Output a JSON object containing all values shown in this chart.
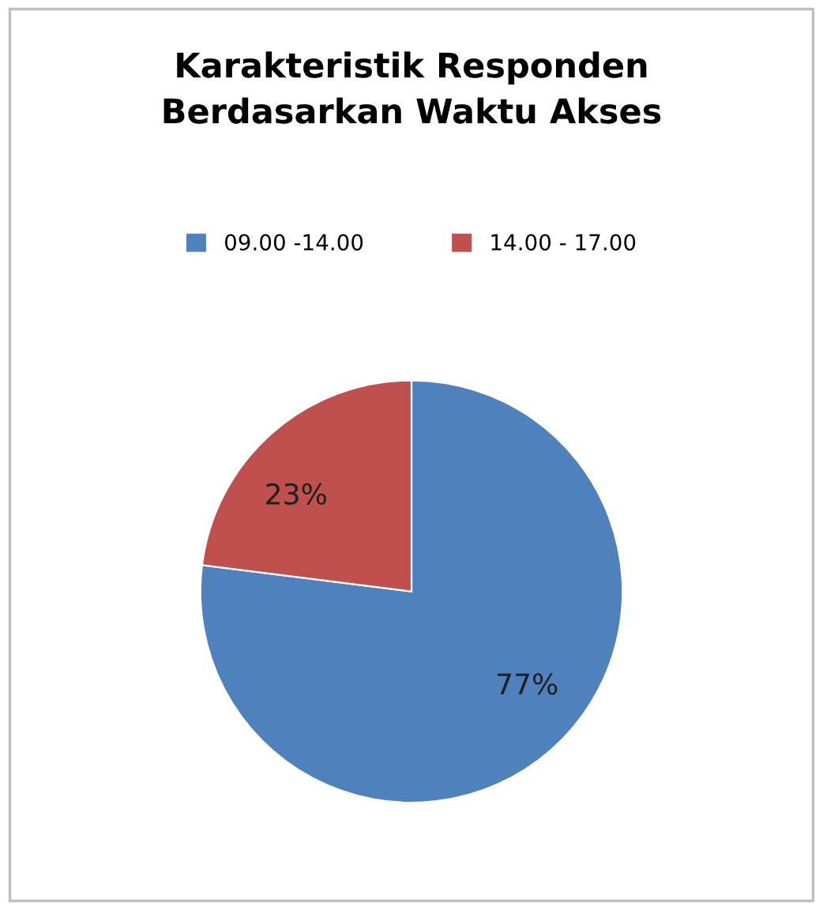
{
  "chart_data": {
    "type": "pie",
    "title": "Karakteristik Responden\nBerdasarkan Waktu Akses",
    "categories": [
      "09.00 -14.00",
      "14.00 - 17.00"
    ],
    "values": [
      77,
      23
    ],
    "colors": [
      "#4f81bd",
      "#c0504d"
    ],
    "value_labels": [
      "77%",
      "23%"
    ],
    "legend": "top"
  }
}
